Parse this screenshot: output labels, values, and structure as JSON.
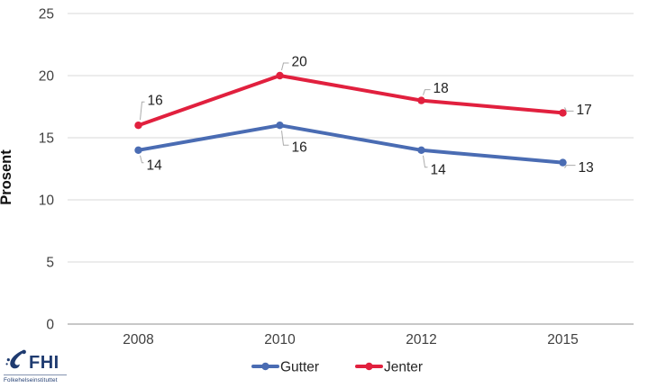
{
  "chart_data": {
    "type": "line",
    "title": "",
    "ylabel": "Prosent",
    "xlabel": "",
    "ylim": [
      0,
      25
    ],
    "yticks": [
      0,
      5,
      10,
      15,
      20,
      25
    ],
    "categories": [
      "2008",
      "2010",
      "2012",
      "2015"
    ],
    "series": [
      {
        "name": "Gutter",
        "color": "#4a6cb3",
        "values": [
          14,
          16,
          14,
          13
        ]
      },
      {
        "name": "Jenter",
        "color": "#e1203e",
        "values": [
          16,
          20,
          18,
          17
        ]
      }
    ],
    "data_labels": true,
    "grid": true,
    "legend_position": "bottom"
  },
  "style": {
    "gridline_color": "#d9d9d9",
    "axis_line_color": "#a6a6a6",
    "leader_line_color": "#ababab",
    "background": "#ffffff"
  },
  "logo": {
    "text": "FHI",
    "subtitle": "Folkehelseinstituttet",
    "color": "#1f3b70"
  }
}
